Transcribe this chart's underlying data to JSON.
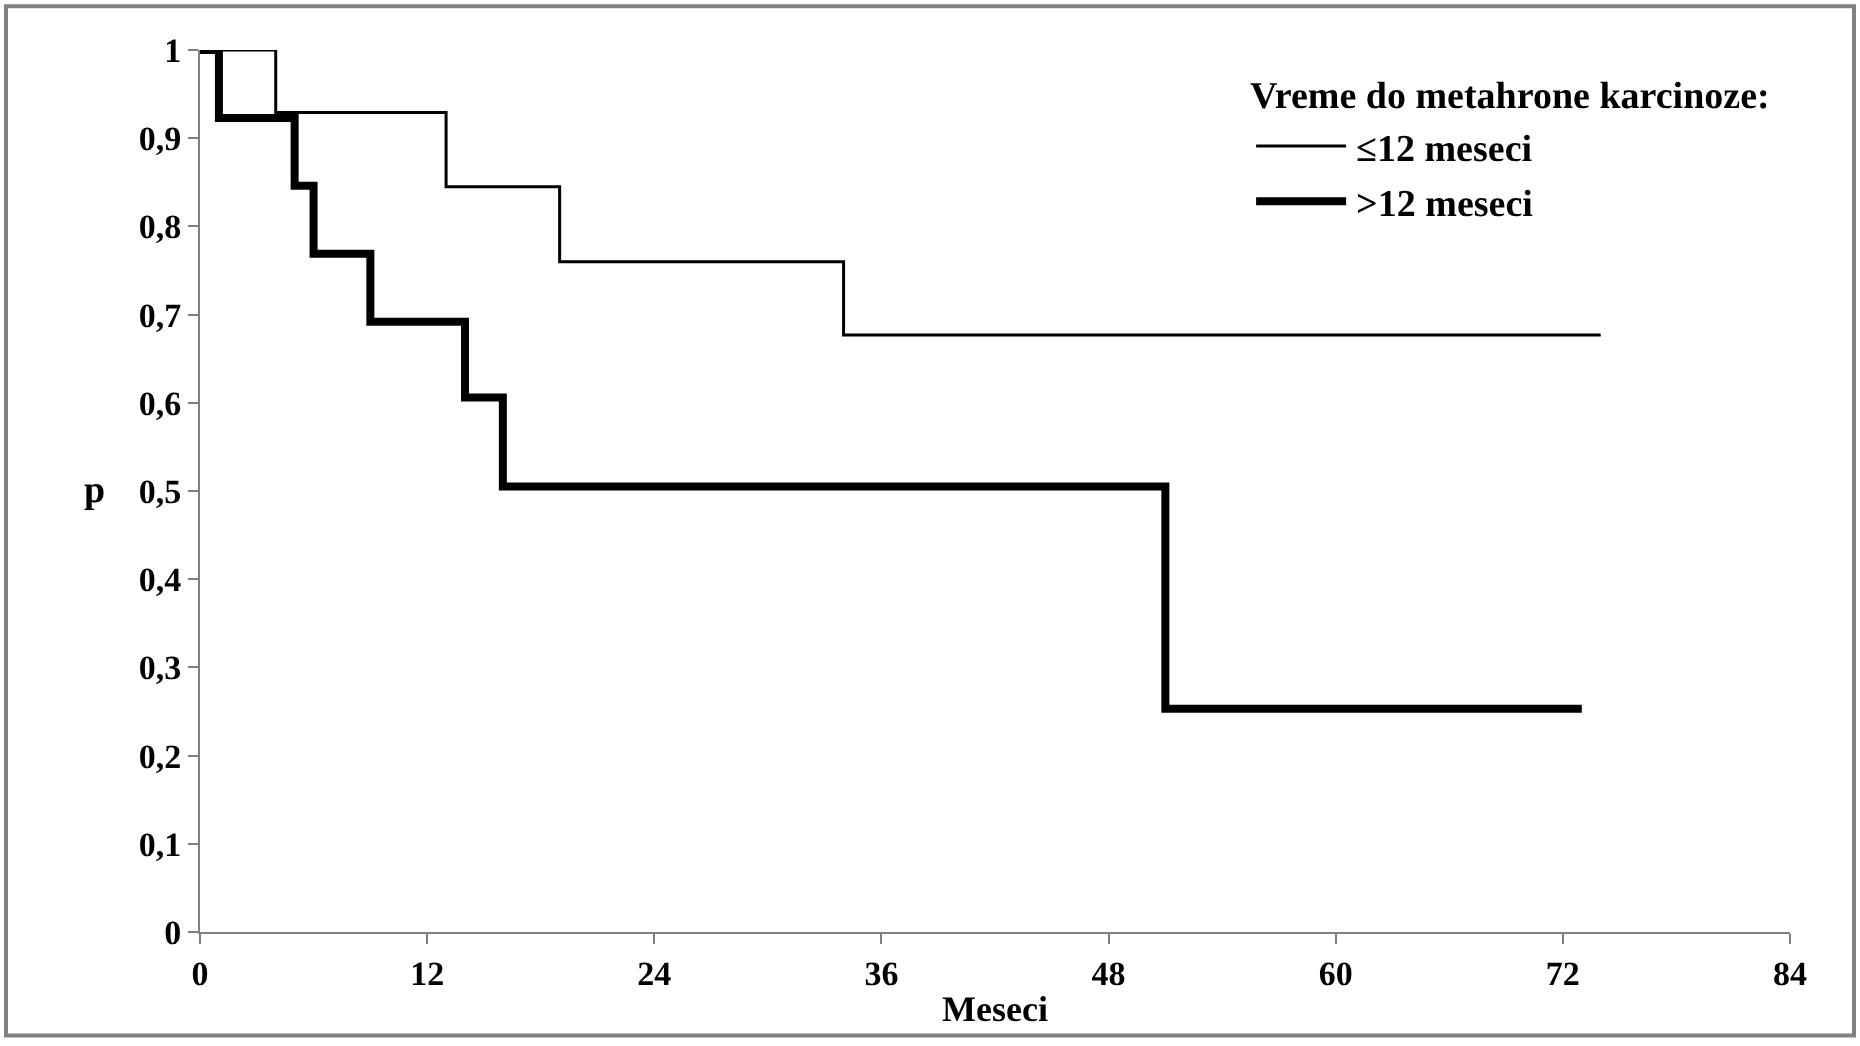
{
  "chart_data": {
    "type": "step",
    "xlabel": "Meseci",
    "ylabel": "p",
    "legend_title": "Vreme do metahrone karcinoze:",
    "series": [
      {
        "name": "≤12 meseci",
        "color": "#000000",
        "x": [
          0,
          4,
          13,
          19,
          34,
          74
        ],
        "values": [
          1,
          0.929,
          0.845,
          0.76,
          0.677,
          0.677
        ]
      },
      {
        "name": ">12 meseci",
        "color": "#000000",
        "x": [
          0,
          1,
          5,
          6,
          9,
          14,
          16,
          51,
          73
        ],
        "values": [
          1,
          0.923,
          0.846,
          0.769,
          0.692,
          0.606,
          0.505,
          0.253,
          0.253
        ]
      }
    ],
    "xlim": [
      0,
      84
    ],
    "xticks": [
      0,
      12,
      24,
      36,
      48,
      60,
      72,
      84
    ],
    "ylim": [
      0,
      1
    ],
    "yticks": [
      0,
      {
        "value": 0.1,
        "label": "0,1"
      },
      {
        "value": 0.2,
        "label": "0,2"
      },
      {
        "value": 0.3,
        "label": "0,3"
      },
      {
        "value": 0.4,
        "label": "0,4"
      },
      {
        "value": 0.5,
        "label": "0,5"
      },
      {
        "value": 0.6,
        "label": "0,6"
      },
      {
        "value": 0.7,
        "label": "0,7"
      },
      {
        "value": 0.8,
        "label": "0,8"
      },
      {
        "value": 0.9,
        "label": "0,9"
      },
      1
    ],
    "legend": "top right",
    "marker": "none",
    "line_style": "solid"
  }
}
